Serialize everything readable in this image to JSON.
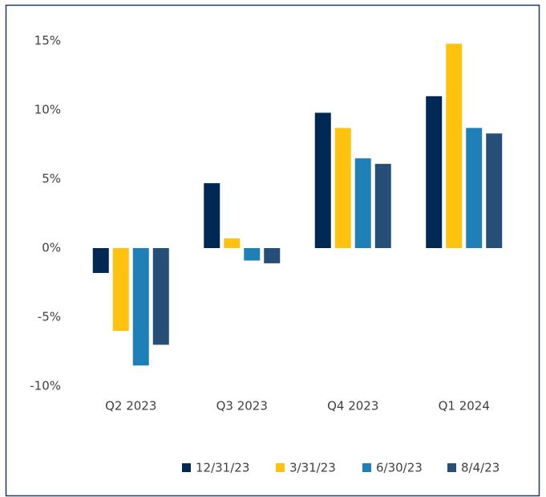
{
  "chart_data": {
    "type": "bar",
    "categories": [
      "Q2 2023",
      "Q3 2023",
      "Q4 2023",
      "Q1 2024"
    ],
    "series": [
      {
        "name": "12/31/23",
        "color": "#002855",
        "values": [
          -1.8,
          4.7,
          9.8,
          11.0
        ]
      },
      {
        "name": "3/31/23",
        "color": "#ffc20e",
        "values": [
          -6.0,
          0.7,
          8.7,
          14.8
        ]
      },
      {
        "name": "6/30/23",
        "color": "#1f80b8",
        "values": [
          -8.5,
          -0.9,
          6.5,
          8.7
        ]
      },
      {
        "name": "8/4/23",
        "color": "#264f78",
        "values": [
          -7.0,
          -1.1,
          6.1,
          8.3
        ]
      }
    ],
    "ylim": [
      -10,
      15
    ],
    "yticks": [
      {
        "value": -10,
        "label": "-10%"
      },
      {
        "value": -5,
        "label": "-5%"
      },
      {
        "value": 0,
        "label": "0%"
      },
      {
        "value": 5,
        "label": "5%"
      },
      {
        "value": 10,
        "label": "10%"
      },
      {
        "value": 15,
        "label": "15%"
      }
    ],
    "grid": false,
    "legend": "bottom"
  }
}
